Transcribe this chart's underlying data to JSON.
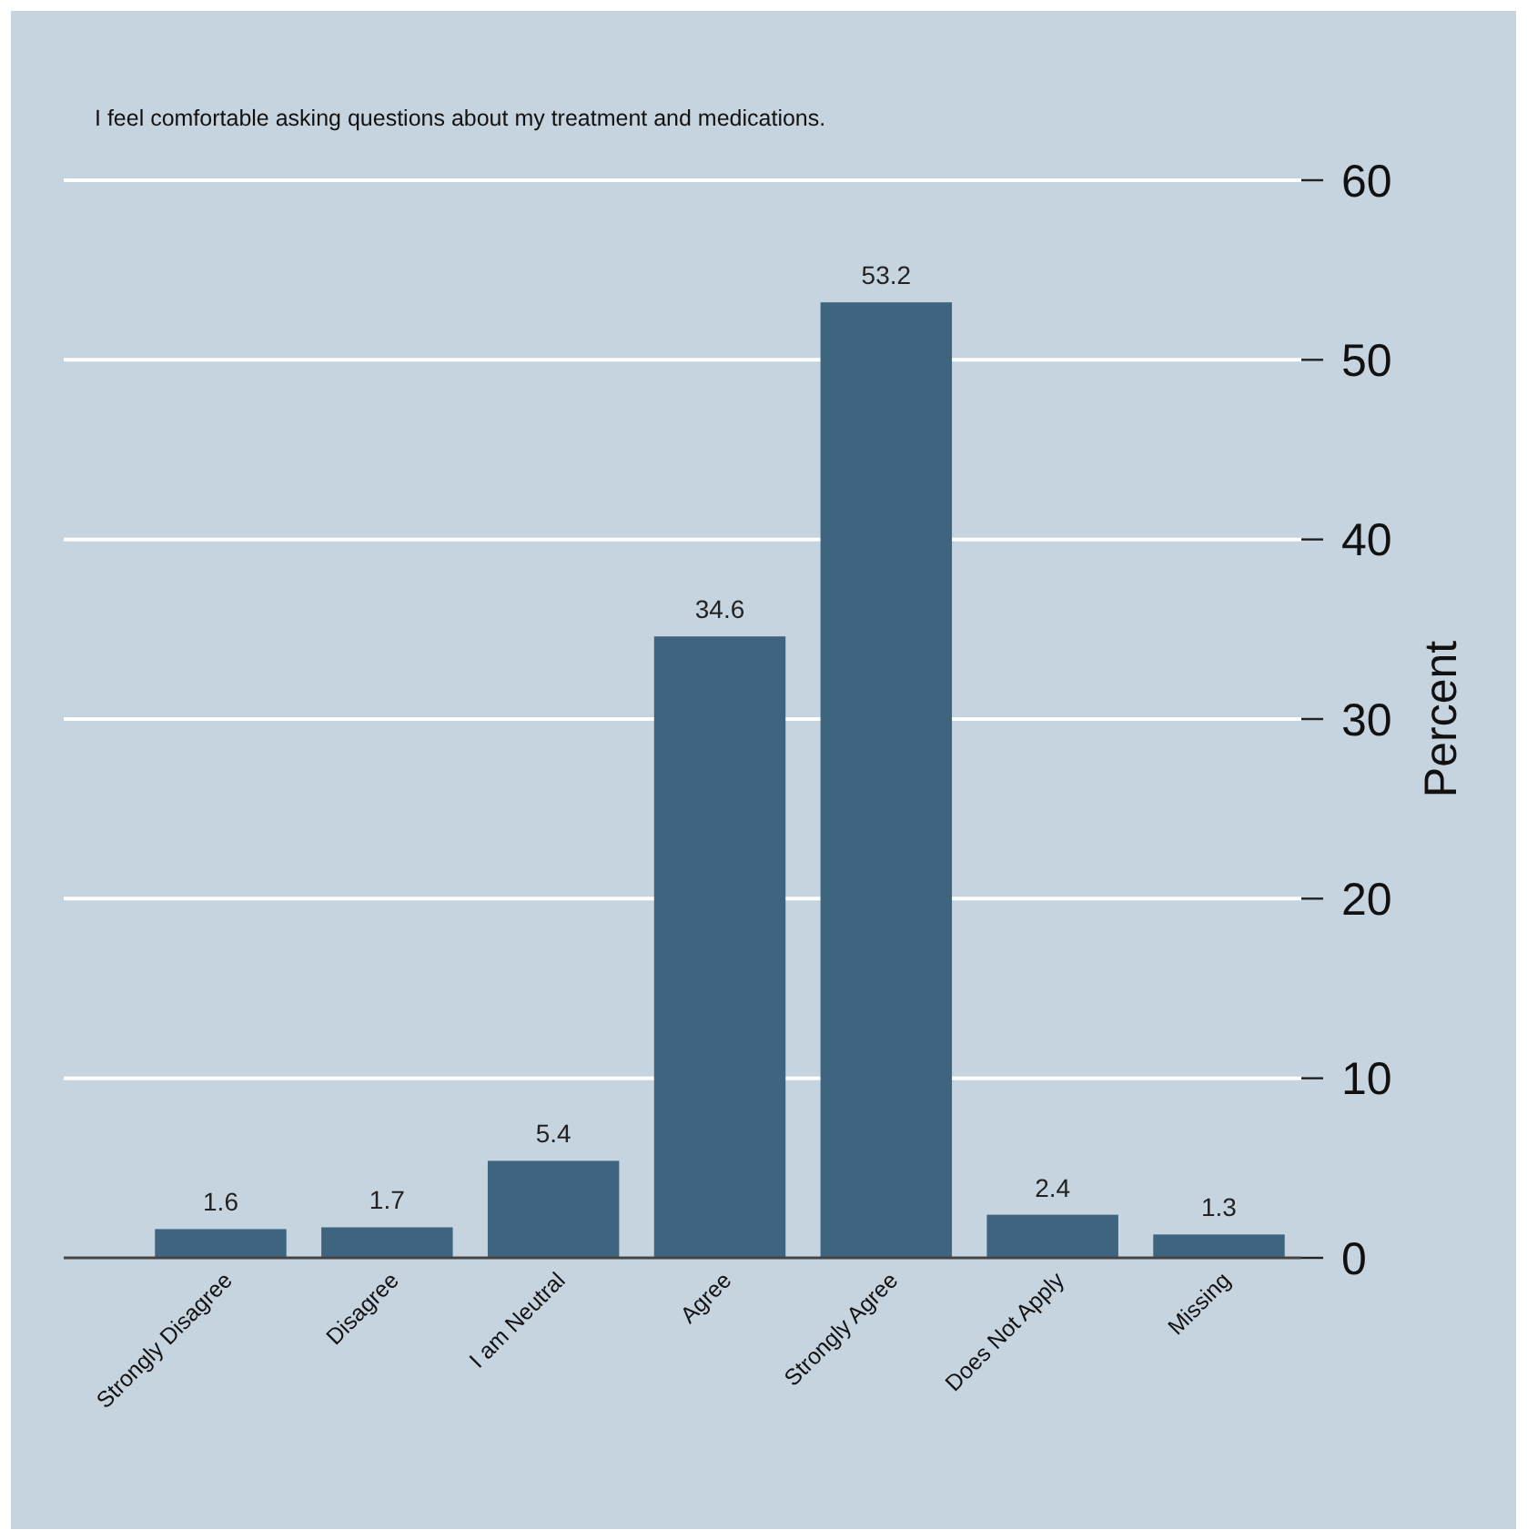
{
  "chart_data": {
    "type": "bar",
    "title": "I feel comfortable asking questions about my treatment and medications.",
    "ylabel": "Percent",
    "categories": [
      "Strongly Disagree",
      "Disagree",
      "I am Neutral",
      "Agree",
      "Strongly Agree",
      "Does Not Apply",
      "Missing"
    ],
    "values": [
      1.6,
      1.7,
      5.4,
      34.6,
      53.2,
      2.4,
      1.3
    ],
    "color": "#3e6480",
    "ylim": [
      0,
      60
    ],
    "yticks": [
      0,
      10,
      20,
      30,
      40,
      50,
      60
    ],
    "grid": "y",
    "data_labels": true
  }
}
